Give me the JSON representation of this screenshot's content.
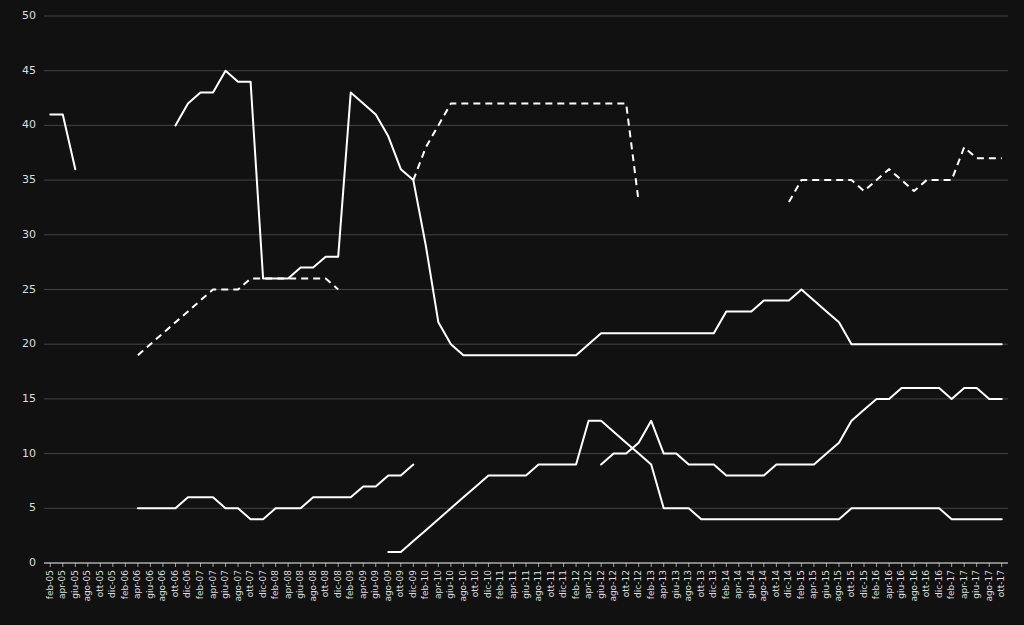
{
  "chart_data": {
    "type": "line",
    "categories": [
      "feb-05",
      "apr-05",
      "giu-05",
      "ago-05",
      "ott-05",
      "dic-05",
      "feb-06",
      "apr-06",
      "giu-06",
      "ago-06",
      "ott-06",
      "dic-06",
      "feb-07",
      "apr-07",
      "giu-07",
      "ago-07",
      "ott-07",
      "dic-07",
      "feb-08",
      "apr-08",
      "giu-08",
      "ago-08",
      "ott-08",
      "dic-08",
      "feb-09",
      "apr-09",
      "giu-09",
      "ago-09",
      "ott-09",
      "dic-09",
      "feb-10",
      "apr-10",
      "giu-10",
      "ago-10",
      "ott-10",
      "dic-10",
      "feb-11",
      "apr-11",
      "giu-11",
      "ago-11",
      "ott-11",
      "dic-11",
      "feb-12",
      "apr-12",
      "giu-12",
      "ago-12",
      "ott-12",
      "dic-12",
      "feb-13",
      "apr-13",
      "giu-13",
      "ago-13",
      "ott-13",
      "dic-13",
      "feb-14",
      "apr-14",
      "giu-14",
      "ago-14",
      "ott-14",
      "dic-14",
      "feb-15",
      "apr-15",
      "giu-15",
      "ago-15",
      "ott-15",
      "dic-15",
      "feb-16",
      "apr-16",
      "giu-16",
      "ago-16",
      "ott-16",
      "dic-16",
      "feb-17",
      "apr-17",
      "giu-17",
      "ago-17",
      "ott-17"
    ],
    "series": [
      {
        "color": "#ffffff",
        "line_style": "solid",
        "values": [
          41,
          41,
          36,
          null,
          null,
          null,
          null,
          null,
          null,
          null,
          40,
          42,
          43,
          43,
          45,
          44,
          44,
          26,
          26,
          26,
          27,
          27,
          28,
          28,
          43,
          42,
          41,
          39,
          36,
          35,
          29,
          22,
          20,
          19,
          19,
          19,
          19,
          19,
          19,
          19,
          19,
          19,
          19,
          20,
          21,
          21,
          21,
          21,
          21,
          21,
          21,
          21,
          21,
          21,
          23,
          23,
          23,
          24,
          24,
          24,
          25,
          24,
          23,
          22,
          20,
          20,
          20,
          20,
          20,
          20,
          20,
          20,
          20,
          20,
          20,
          20,
          20
        ]
      },
      {
        "color": "#ffffff",
        "line_style": "dashed",
        "values": [
          null,
          null,
          null,
          null,
          null,
          null,
          null,
          19,
          20,
          21,
          22,
          23,
          24,
          25,
          25,
          25,
          26,
          26,
          26,
          26,
          26,
          26,
          26,
          25,
          null,
          null,
          null,
          null,
          null,
          null,
          null,
          null,
          null,
          null,
          null,
          null,
          null,
          null,
          null,
          null,
          null,
          null,
          null,
          null,
          null,
          null,
          null,
          null,
          null,
          null,
          null,
          null,
          null,
          null,
          null,
          null,
          null,
          null,
          null,
          null,
          null,
          null,
          null,
          null,
          null,
          null,
          null,
          null,
          null,
          null,
          null,
          null,
          null,
          null,
          null,
          null,
          null
        ]
      },
      {
        "color": "#ffffff",
        "line_style": "dashed",
        "values": [
          null,
          null,
          null,
          null,
          null,
          null,
          null,
          null,
          null,
          null,
          null,
          null,
          null,
          null,
          null,
          null,
          null,
          null,
          null,
          null,
          null,
          null,
          null,
          null,
          null,
          null,
          null,
          null,
          null,
          35,
          38,
          40,
          42,
          42,
          42,
          42,
          42,
          42,
          42,
          42,
          42,
          42,
          42,
          42,
          42,
          42,
          42,
          33,
          null,
          null,
          null,
          null,
          null,
          null,
          null,
          null,
          null,
          null,
          null,
          33,
          35,
          35,
          35,
          35,
          35,
          34,
          35,
          36,
          35,
          34,
          35,
          35,
          35,
          38,
          37,
          37,
          37
        ]
      },
      {
        "color": "#ffffff",
        "line_style": "solid",
        "values": [
          null,
          null,
          null,
          null,
          null,
          null,
          null,
          5,
          5,
          5,
          5,
          6,
          6,
          6,
          5,
          5,
          4,
          4,
          5,
          5,
          5,
          6,
          6,
          6,
          6,
          7,
          7,
          8,
          8,
          9,
          null,
          null,
          null,
          null,
          null,
          null,
          null,
          null,
          null,
          null,
          null,
          null,
          null,
          null,
          null,
          null,
          null,
          null,
          null,
          null,
          null,
          null,
          null,
          null,
          null,
          null,
          null,
          null,
          null,
          null,
          null,
          null,
          null,
          null,
          null,
          null,
          null,
          null,
          null,
          null,
          null,
          null,
          null,
          null,
          null,
          null,
          null
        ]
      },
      {
        "color": "#ffffff",
        "line_style": "solid",
        "values": [
          null,
          null,
          null,
          null,
          null,
          null,
          null,
          null,
          null,
          null,
          null,
          null,
          null,
          null,
          null,
          null,
          null,
          null,
          null,
          null,
          null,
          null,
          null,
          null,
          null,
          null,
          null,
          null,
          null,
          null,
          null,
          null,
          null,
          null,
          null,
          null,
          null,
          null,
          null,
          null,
          null,
          null,
          null,
          null,
          9,
          10,
          10,
          11,
          13,
          10,
          10,
          9,
          9,
          9,
          8,
          8,
          8,
          8,
          9,
          9,
          9,
          9,
          10,
          11,
          13,
          14,
          15,
          15,
          16,
          16,
          16,
          16,
          15,
          16,
          16,
          15,
          15
        ]
      },
      {
        "color": "#ffffff",
        "line_style": "solid",
        "values": [
          null,
          null,
          null,
          null,
          null,
          null,
          null,
          null,
          null,
          null,
          null,
          null,
          null,
          null,
          null,
          null,
          null,
          null,
          null,
          null,
          null,
          null,
          null,
          null,
          null,
          null,
          null,
          1,
          1,
          2,
          3,
          4,
          5,
          6,
          7,
          8,
          8,
          8,
          8,
          9,
          9,
          9,
          9,
          13,
          13,
          12,
          11,
          10,
          9,
          5,
          5,
          5,
          4,
          4,
          4,
          4,
          4,
          4,
          4,
          4,
          4,
          4,
          4,
          4,
          5,
          5,
          5,
          5,
          5,
          5,
          5,
          5,
          4,
          4,
          4,
          4,
          4
        ]
      }
    ],
    "ylim": [
      0,
      50
    ],
    "yticks": [
      0,
      5,
      10,
      15,
      20,
      25,
      30,
      35,
      40,
      45,
      50
    ],
    "grid": true
  }
}
